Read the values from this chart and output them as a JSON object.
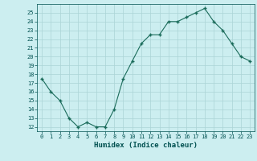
{
  "x": [
    0,
    1,
    2,
    3,
    4,
    5,
    6,
    7,
    8,
    9,
    10,
    11,
    12,
    13,
    14,
    15,
    16,
    17,
    18,
    19,
    20,
    21,
    22,
    23
  ],
  "y": [
    17.5,
    16,
    15,
    13,
    12,
    12.5,
    12,
    12,
    14,
    17.5,
    19.5,
    21.5,
    22.5,
    22.5,
    24,
    24,
    24.5,
    25,
    25.5,
    24,
    23,
    21.5,
    20,
    19.5
  ],
  "line_color": "#1a6b5a",
  "marker_color": "#1a6b5a",
  "bg_color": "#cceef0",
  "grid_color": "#aad4d6",
  "xlabel": "Humidex (Indice chaleur)",
  "xlabel_color": "#005050",
  "tick_color": "#005050",
  "ylim": [
    11.5,
    26
  ],
  "xlim": [
    -0.5,
    23.5
  ],
  "yticks": [
    12,
    13,
    14,
    15,
    16,
    17,
    18,
    19,
    20,
    21,
    22,
    23,
    24,
    25
  ],
  "xticks": [
    0,
    1,
    2,
    3,
    4,
    5,
    6,
    7,
    8,
    9,
    10,
    11,
    12,
    13,
    14,
    15,
    16,
    17,
    18,
    19,
    20,
    21,
    22,
    23
  ],
  "xtick_labels": [
    "0",
    "1",
    "2",
    "3",
    "4",
    "5",
    "6",
    "7",
    "8",
    "9",
    "10",
    "11",
    "12",
    "13",
    "14",
    "15",
    "16",
    "17",
    "18",
    "19",
    "20",
    "21",
    "22",
    "23"
  ]
}
